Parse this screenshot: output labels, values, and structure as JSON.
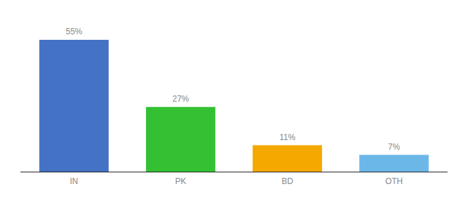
{
  "chart_data": {
    "type": "bar",
    "categories": [
      "IN",
      "PK",
      "BD",
      "OTH"
    ],
    "values": [
      55,
      27,
      11,
      7
    ],
    "value_labels": [
      "55%",
      "27%",
      "11%",
      "7%"
    ],
    "colors": [
      "#4472C4",
      "#33C133",
      "#F5A800",
      "#6BB8E8"
    ],
    "ylim": [
      0,
      63
    ],
    "data_labels": true,
    "tick_labels": "x",
    "grid": false
  }
}
